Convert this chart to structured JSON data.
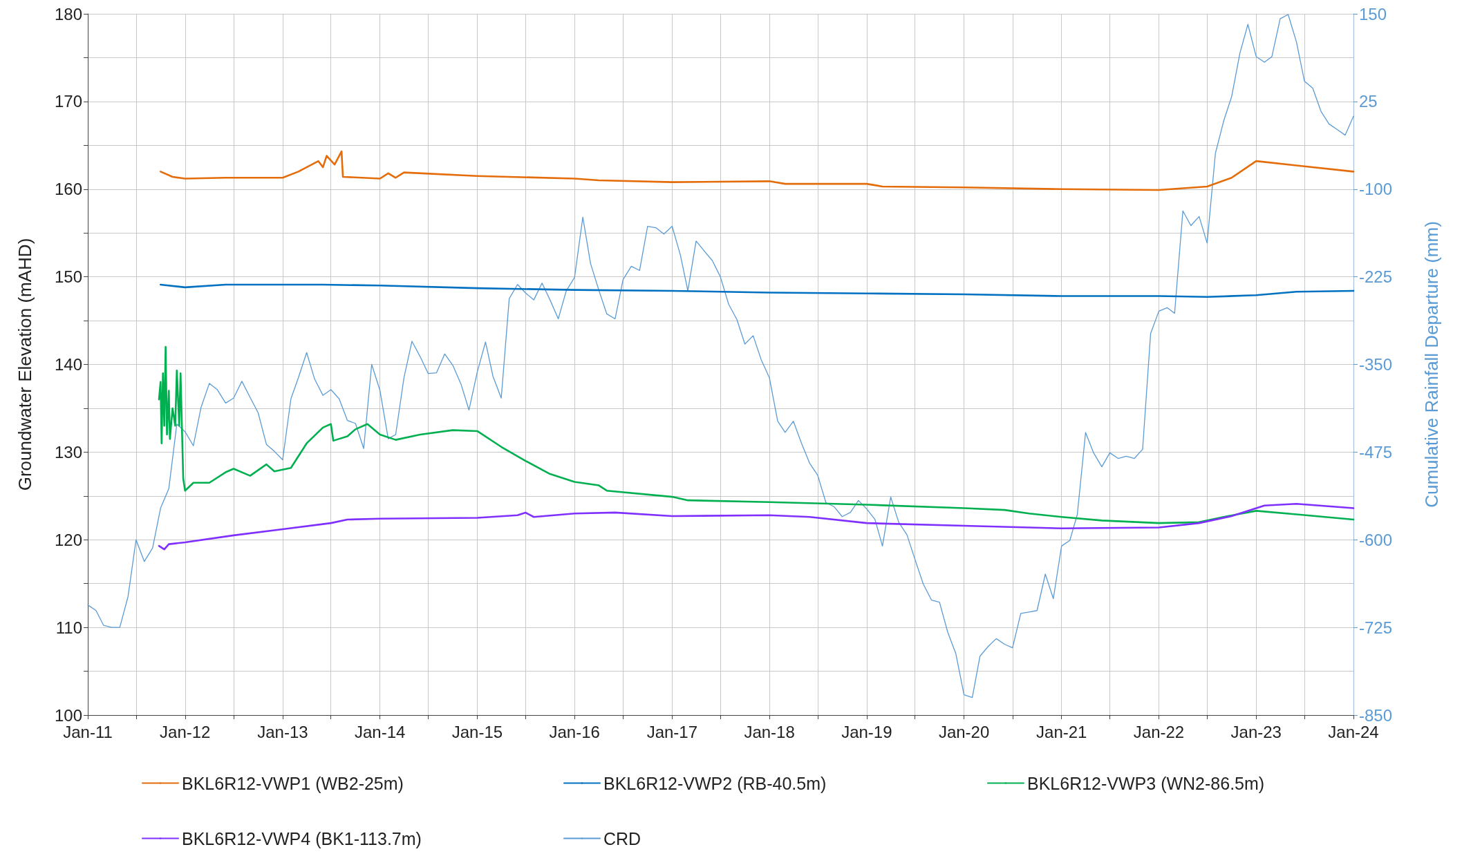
{
  "chart_data": {
    "type": "line",
    "ylabel": "Groundwater Elevation (mAHD)",
    "y2label": "Cumulative Rainfall Departure (mm)",
    "xlim": [
      "2011-01",
      "2024-01"
    ],
    "xticks": [
      {
        "value": "2011-01",
        "label": "Jan-11"
      },
      {
        "value": "2011-07",
        "label": null
      },
      {
        "value": "2012-01",
        "label": "Jan-12"
      },
      {
        "value": "2012-07",
        "label": null
      },
      {
        "value": "2013-01",
        "label": "Jan-13"
      },
      {
        "value": "2013-07",
        "label": null
      },
      {
        "value": "2014-01",
        "label": "Jan-14"
      },
      {
        "value": "2014-07",
        "label": null
      },
      {
        "value": "2015-01",
        "label": "Jan-15"
      },
      {
        "value": "2015-07",
        "label": null
      },
      {
        "value": "2016-01",
        "label": "Jan-16"
      },
      {
        "value": "2016-07",
        "label": null
      },
      {
        "value": "2017-01",
        "label": "Jan-17"
      },
      {
        "value": "2017-07",
        "label": null
      },
      {
        "value": "2018-01",
        "label": "Jan-18"
      },
      {
        "value": "2018-07",
        "label": null
      },
      {
        "value": "2019-01",
        "label": "Jan-19"
      },
      {
        "value": "2019-07",
        "label": null
      },
      {
        "value": "2020-01",
        "label": "Jan-20"
      },
      {
        "value": "2020-07",
        "label": null
      },
      {
        "value": "2021-01",
        "label": "Jan-21"
      },
      {
        "value": "2021-07",
        "label": null
      },
      {
        "value": "2022-01",
        "label": "Jan-22"
      },
      {
        "value": "2022-07",
        "label": null
      },
      {
        "value": "2023-01",
        "label": "Jan-23"
      },
      {
        "value": "2023-07",
        "label": null
      },
      {
        "value": "2024-01",
        "label": "Jan-24"
      }
    ],
    "ylim": [
      100,
      180
    ],
    "yticks": [
      100,
      {
        "value": 105,
        "label": null
      },
      110,
      {
        "value": 115,
        "label": null
      },
      120,
      {
        "value": 125,
        "label": null
      },
      130,
      {
        "value": 135,
        "label": null
      },
      140,
      {
        "value": 145,
        "label": null
      },
      150,
      {
        "value": 155,
        "label": null
      },
      160,
      {
        "value": 165,
        "label": null
      },
      170,
      {
        "value": 175,
        "label": null
      },
      180
    ],
    "y2lim": [
      -850,
      150
    ],
    "y2ticks": [
      -850,
      -725,
      -600,
      -475,
      -350,
      -225,
      -100,
      25,
      150
    ],
    "grid": true,
    "legend": "bottom",
    "series": [
      {
        "name": "BKL6R12-VWP1 (WB2-25m)",
        "color": "#e46c0a",
        "x": [
          "2011-10-01",
          "2011-11-15",
          "2012-01-01",
          "2012-06-01",
          "2013-01-01",
          "2013-03-01",
          "2013-05-15",
          "2013-06-01",
          "2013-06-15",
          "2013-07-15",
          "2013-08-10",
          "2013-08-15",
          "2014-01-01",
          "2014-02-01",
          "2014-03-01",
          "2014-04-01",
          "2015-01-01",
          "2016-01-01",
          "2016-04-01",
          "2017-01-01",
          "2018-01-01",
          "2018-03-01",
          "2019-01-01",
          "2019-03-01",
          "2020-01-01",
          "2021-01-01",
          "2022-01-01",
          "2022-07-01",
          "2022-10-01",
          "2023-01-01",
          "2023-06-01",
          "2024-01-01"
        ],
        "values": [
          162.0,
          161.4,
          161.2,
          161.3,
          161.3,
          162.0,
          163.2,
          162.5,
          163.8,
          162.8,
          164.3,
          161.4,
          161.2,
          161.8,
          161.3,
          161.9,
          161.5,
          161.2,
          161.0,
          160.8,
          160.9,
          160.6,
          160.6,
          160.3,
          160.2,
          160.0,
          159.9,
          160.3,
          161.3,
          163.2,
          162.7,
          162.0
        ]
      },
      {
        "name": "BKL6R12-VWP2 (RB-40.5m)",
        "color": "#0070c0",
        "x": [
          "2011-10-01",
          "2012-01-01",
          "2012-06-01",
          "2013-06-01",
          "2014-01-01",
          "2015-01-01",
          "2016-01-01",
          "2017-01-01",
          "2018-01-01",
          "2019-01-01",
          "2020-01-01",
          "2021-01-01",
          "2022-01-01",
          "2022-07-01",
          "2023-01-01",
          "2023-06-01",
          "2024-01-01"
        ],
        "values": [
          149.1,
          148.8,
          149.1,
          149.1,
          149.0,
          148.7,
          148.5,
          148.4,
          148.2,
          148.1,
          148.0,
          147.8,
          147.8,
          147.7,
          147.9,
          148.3,
          148.4
        ]
      },
      {
        "name": "BKL6R12-VWP3 (WN2-86.5m)",
        "color": "#00b050",
        "x": [
          "2011-09-25",
          "2011-10-01",
          "2011-10-05",
          "2011-10-10",
          "2011-10-15",
          "2011-10-20",
          "2011-10-25",
          "2011-11-01",
          "2011-11-05",
          "2011-11-15",
          "2011-11-25",
          "2011-12-01",
          "2011-12-10",
          "2011-12-15",
          "2011-12-25",
          "2012-01-01",
          "2012-02-01",
          "2012-04-01",
          "2012-06-01",
          "2012-07-01",
          "2012-09-01",
          "2012-11-01",
          "2012-12-01",
          "2013-02-01",
          "2013-04-01",
          "2013-06-01",
          "2013-07-01",
          "2013-07-10",
          "2013-09-01",
          "2013-10-01",
          "2013-11-15",
          "2014-01-01",
          "2014-03-01",
          "2014-06-01",
          "2014-10-01",
          "2015-01-01",
          "2015-04-01",
          "2015-07-01",
          "2015-10-01",
          "2016-01-01",
          "2016-04-01",
          "2016-05-01",
          "2017-01-01",
          "2017-03-01",
          "2018-01-01",
          "2019-01-01",
          "2020-01-01",
          "2020-06-01",
          "2020-09-01",
          "2021-01-01",
          "2021-06-01",
          "2022-01-01",
          "2022-06-01",
          "2022-09-01",
          "2023-01-01",
          "2023-06-01",
          "2024-01-01"
        ],
        "values": [
          136,
          138,
          131,
          139,
          133,
          142,
          132,
          137,
          131.5,
          135,
          133,
          139.3,
          133,
          139,
          127,
          125.6,
          126.5,
          126.5,
          127.7,
          128.1,
          127.3,
          128.6,
          127.8,
          128.2,
          131.0,
          132.8,
          133.2,
          131.3,
          131.8,
          132.6,
          133.2,
          132.0,
          131.4,
          132.0,
          132.5,
          132.4,
          130.6,
          129.0,
          127.5,
          126.6,
          126.2,
          125.6,
          124.9,
          124.5,
          124.3,
          124.0,
          123.6,
          123.4,
          123.0,
          122.6,
          122.2,
          121.9,
          122.0,
          122.6,
          123.3,
          122.9,
          122.3
        ]
      },
      {
        "name": "BKL6R12-VWP4 (BK1-113.7m)",
        "color": "#7f2fff",
        "x": [
          "2011-09-25",
          "2011-10-15",
          "2011-11-01",
          "2012-01-01",
          "2012-07-01",
          "2013-01-01",
          "2013-07-01",
          "2013-09-01",
          "2014-01-01",
          "2015-01-01",
          "2015-06-01",
          "2015-07-01",
          "2015-08-01",
          "2016-01-01",
          "2016-06-01",
          "2017-01-01",
          "2018-01-01",
          "2018-06-01",
          "2019-01-01",
          "2020-01-01",
          "2021-01-01",
          "2022-01-01",
          "2022-06-01",
          "2022-10-01",
          "2023-02-01",
          "2023-06-01",
          "2024-01-01"
        ],
        "values": [
          119.3,
          118.9,
          119.5,
          119.7,
          120.5,
          121.2,
          121.9,
          122.3,
          122.4,
          122.5,
          122.8,
          123.1,
          122.6,
          123.0,
          123.1,
          122.7,
          122.8,
          122.6,
          121.9,
          121.6,
          121.3,
          121.4,
          121.9,
          122.7,
          123.9,
          124.1,
          123.6
        ]
      },
      {
        "name": "CRD",
        "color": "#5b9bd5",
        "axis": "y2",
        "x": [
          "2011-01",
          "2011-02",
          "2011-03",
          "2011-04",
          "2011-05",
          "2011-06",
          "2011-07",
          "2011-08",
          "2011-09",
          "2011-10",
          "2011-11",
          "2011-12",
          "2012-01",
          "2012-02",
          "2012-03",
          "2012-04",
          "2012-05",
          "2012-06",
          "2012-07",
          "2012-08",
          "2012-09",
          "2012-10",
          "2012-11",
          "2012-12",
          "2013-01",
          "2013-02",
          "2013-03",
          "2013-04",
          "2013-05",
          "2013-06",
          "2013-07",
          "2013-08",
          "2013-09",
          "2013-10",
          "2013-11",
          "2013-12",
          "2014-01",
          "2014-02",
          "2014-03",
          "2014-04",
          "2014-05",
          "2014-06",
          "2014-07",
          "2014-08",
          "2014-09",
          "2014-10",
          "2014-11",
          "2014-12",
          "2015-01",
          "2015-02",
          "2015-03",
          "2015-04",
          "2015-05",
          "2015-06",
          "2015-07",
          "2015-08",
          "2015-09",
          "2015-10",
          "2015-11",
          "2015-12",
          "2016-01",
          "2016-02",
          "2016-03",
          "2016-04",
          "2016-05",
          "2016-06",
          "2016-07",
          "2016-08",
          "2016-09",
          "2016-10",
          "2016-11",
          "2016-12",
          "2017-01",
          "2017-02",
          "2017-03",
          "2017-04",
          "2017-05",
          "2017-06",
          "2017-07",
          "2017-08",
          "2017-09",
          "2017-10",
          "2017-11",
          "2017-12",
          "2018-01",
          "2018-02",
          "2018-03",
          "2018-04",
          "2018-05",
          "2018-06",
          "2018-07",
          "2018-08",
          "2018-09",
          "2018-10",
          "2018-11",
          "2018-12",
          "2019-01",
          "2019-02",
          "2019-03",
          "2019-04",
          "2019-05",
          "2019-06",
          "2019-07",
          "2019-08",
          "2019-09",
          "2019-10",
          "2019-11",
          "2019-12",
          "2020-01",
          "2020-02",
          "2020-03",
          "2020-04",
          "2020-05",
          "2020-06",
          "2020-07",
          "2020-08",
          "2020-09",
          "2020-10",
          "2020-11",
          "2020-12",
          "2021-01",
          "2021-02",
          "2021-03",
          "2021-04",
          "2021-05",
          "2021-06",
          "2021-07",
          "2021-08",
          "2021-09",
          "2021-10",
          "2021-11",
          "2021-12",
          "2022-01",
          "2022-02",
          "2022-03",
          "2022-04",
          "2022-05",
          "2022-06",
          "2022-07",
          "2022-08",
          "2022-09",
          "2022-10",
          "2022-11",
          "2022-12",
          "2023-01",
          "2023-02",
          "2023-03",
          "2023-04",
          "2023-05",
          "2023-06",
          "2023-07",
          "2023-08",
          "2023-09",
          "2023-10",
          "2023-11",
          "2023-12",
          "2024-01"
        ],
        "values": [
          -693,
          -701,
          -722,
          -725,
          -725,
          -681,
          -600,
          -631,
          -612,
          -555,
          -527,
          -435,
          -446,
          -466,
          -411,
          -377,
          -386,
          -405,
          -398,
          -374,
          -397,
          -419,
          -464,
          -474,
          -486,
          -399,
          -369,
          -333,
          -371,
          -394,
          -386,
          -399,
          -430,
          -434,
          -470,
          -350,
          -387,
          -456,
          -450,
          -369,
          -317,
          -339,
          -363,
          -362,
          -335,
          -351,
          -378,
          -415,
          -361,
          -318,
          -367,
          -398,
          -256,
          -236,
          -248,
          -258,
          -234,
          -258,
          -285,
          -245,
          -226,
          -140,
          -206,
          -244,
          -278,
          -285,
          -229,
          -210,
          -216,
          -153,
          -155,
          -164,
          -153,
          -194,
          -245,
          -174,
          -188,
          -202,
          -225,
          -264,
          -286,
          -321,
          -309,
          -343,
          -369,
          -431,
          -447,
          -431,
          -462,
          -491,
          -508,
          -547,
          -553,
          -567,
          -561,
          -544,
          -556,
          -571,
          -609,
          -539,
          -575,
          -593,
          -628,
          -663,
          -686,
          -689,
          -732,
          -762,
          -821,
          -825,
          -766,
          -752,
          -741,
          -749,
          -754,
          -705,
          -703,
          -701,
          -649,
          -684,
          -609,
          -601,
          -564,
          -447,
          -476,
          -496,
          -476,
          -484,
          -481,
          -484,
          -471,
          -306,
          -274,
          -269,
          -277,
          -131,
          -152,
          -139,
          -177,
          -49,
          -3,
          32,
          94,
          135,
          89,
          81,
          89,
          143,
          149,
          110,
          54,
          44,
          11,
          -7,
          -15,
          -23,
          4
        ]
      }
    ]
  }
}
